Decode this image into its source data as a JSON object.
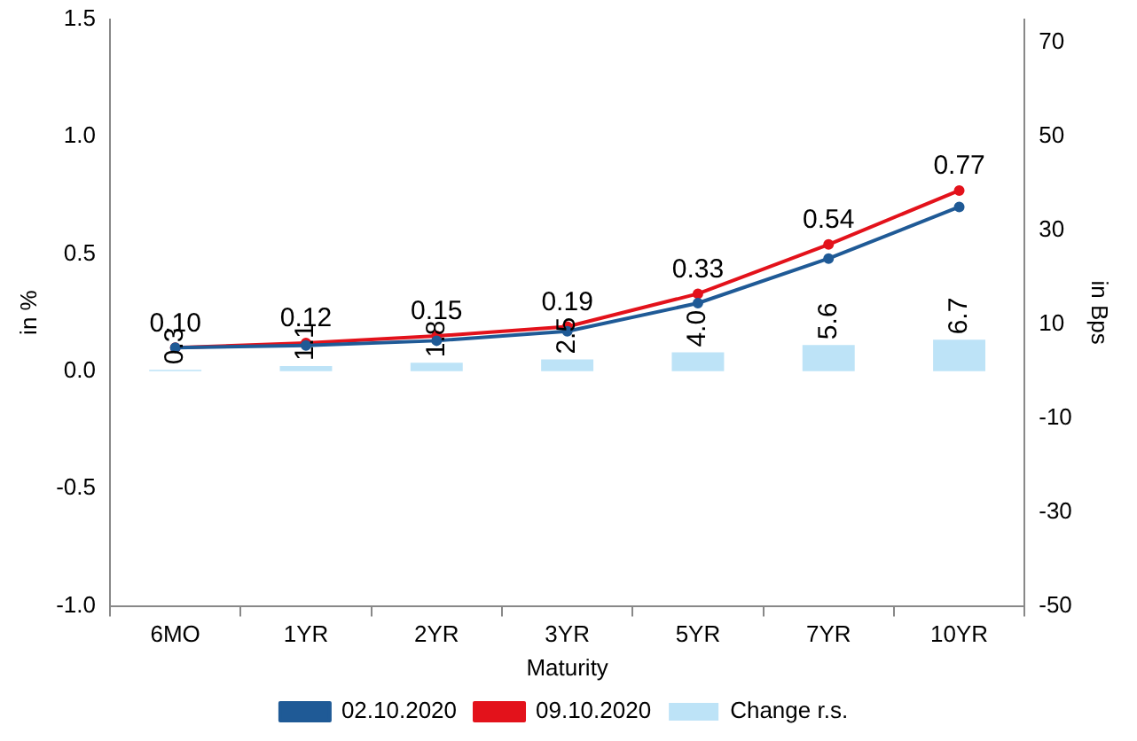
{
  "chart_data": {
    "type": "line",
    "categories": [
      "6MO",
      "1YR",
      "2YR",
      "3YR",
      "5YR",
      "7YR",
      "10YR"
    ],
    "xlabel": "Maturity",
    "ylabel": "in %",
    "y2label": "in Bps",
    "series": [
      {
        "name": "Change r.s.",
        "type": "bar",
        "axis": "y2",
        "color": "#bde3f7",
        "values": [
          0.3,
          1.1,
          1.8,
          2.5,
          4.0,
          5.6,
          6.7
        ],
        "value_labels": [
          "0.3",
          "1.1",
          "1.8",
          "2.5",
          "4.0",
          "5.6",
          "6.7"
        ]
      },
      {
        "name": "02.10.2020",
        "color": "#1f5a96",
        "values": [
          0.1,
          0.11,
          0.13,
          0.17,
          0.29,
          0.48,
          0.7
        ]
      },
      {
        "name": "09.10.2020",
        "color": "#e3121b",
        "values": [
          0.1,
          0.12,
          0.15,
          0.19,
          0.33,
          0.54,
          0.77
        ],
        "value_labels": [
          "0.10",
          "0.12",
          "0.15",
          "0.19",
          "0.33",
          "0.54",
          "0.77"
        ]
      }
    ],
    "ylim": [
      -1.0,
      1.5
    ],
    "yticks": [
      {
        "value": -1.0,
        "label": "-1.0"
      },
      {
        "value": -0.5,
        "label": "-0.5"
      },
      {
        "value": 0,
        "label": "0.0"
      },
      {
        "value": 0.5,
        "label": "0.5"
      },
      {
        "value": 1.0,
        "label": "1.0"
      },
      {
        "value": 1.5,
        "label": "1.5"
      }
    ],
    "y2lim": [
      -50,
      75
    ],
    "y2ticks": [
      -50,
      -30,
      -10,
      10,
      30,
      50,
      70
    ],
    "legend": "bottom",
    "grid": false,
    "marker": "circle",
    "line_style": "solid"
  }
}
